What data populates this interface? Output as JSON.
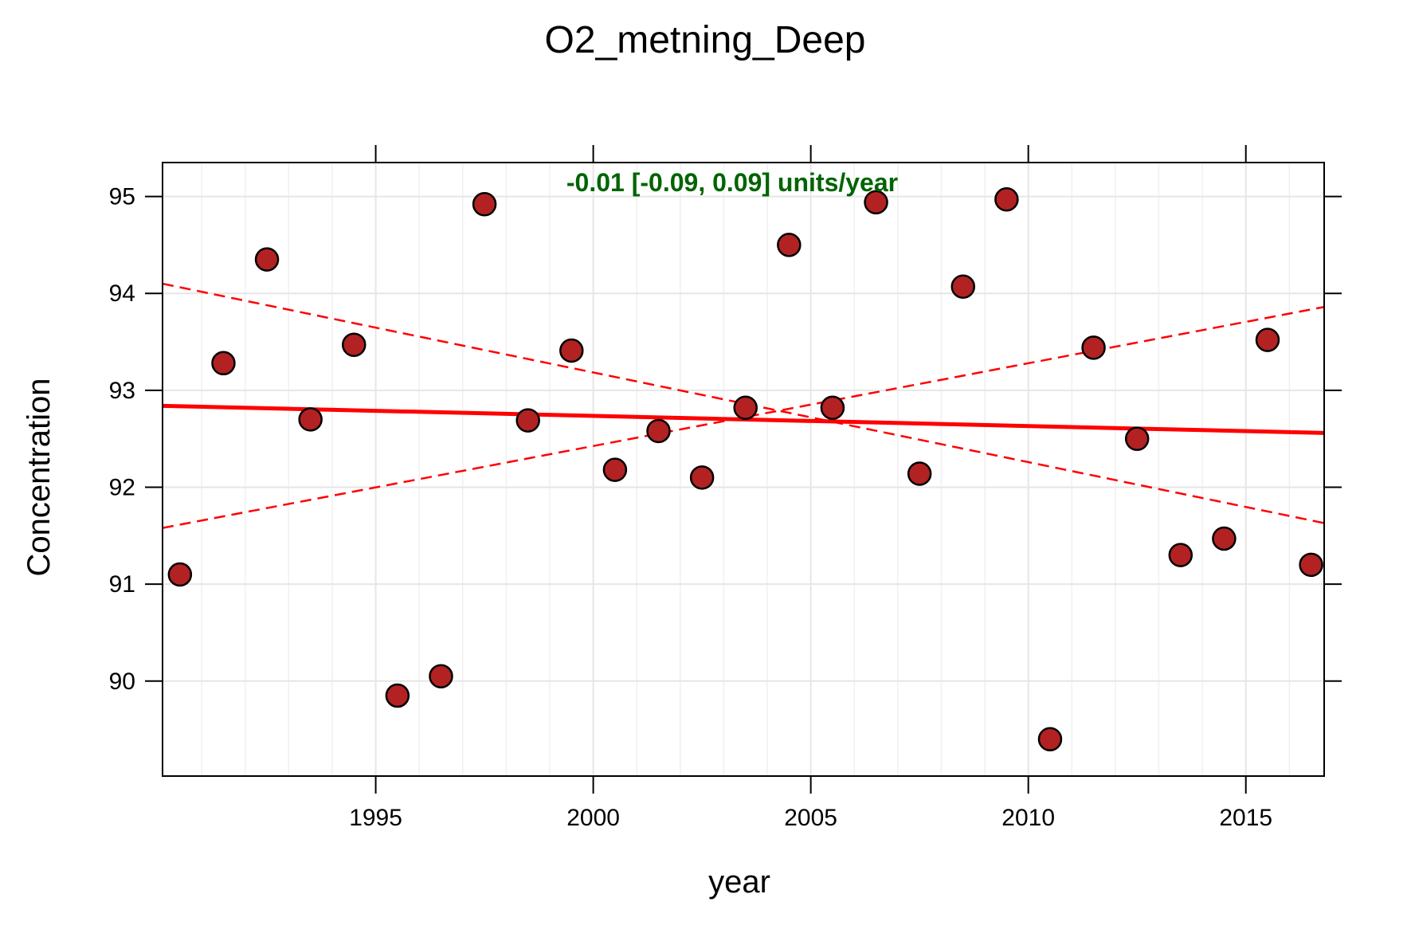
{
  "chart_data": {
    "type": "scatter",
    "title": "O2_metning_Deep",
    "xlabel": "year",
    "ylabel": "Concentration",
    "xlim": [
      1990.1,
      2016.8
    ],
    "ylim": [
      89.02,
      95.35
    ],
    "xticks": [
      1995,
      2000,
      2005,
      2010,
      2015
    ],
    "yticks": [
      90,
      91,
      92,
      93,
      94,
      95
    ],
    "grid": true,
    "annotation": {
      "text": "-0.01 [-0.09, 0.09] units/year",
      "color": "#006400",
      "position": "top-center"
    },
    "series": [
      {
        "kind": "points",
        "color": "#b22222",
        "edge_color": "#000000",
        "x": [
          1990.5,
          1991.5,
          1992.5,
          1993.5,
          1994.5,
          1995.5,
          1996.5,
          1997.5,
          1998.5,
          1999.5,
          2000.5,
          2001.5,
          2002.5,
          2003.5,
          2004.5,
          2005.5,
          2006.5,
          2007.5,
          2008.5,
          2009.5,
          2010.5,
          2011.5,
          2012.5,
          2013.5,
          2014.5,
          2015.5,
          2016.5
        ],
        "y": [
          91.1,
          93.28,
          94.35,
          92.7,
          93.47,
          89.85,
          90.05,
          94.92,
          92.69,
          93.41,
          92.18,
          92.58,
          92.1,
          92.82,
          94.5,
          92.82,
          94.94,
          92.14,
          94.07,
          94.97,
          89.4,
          93.44,
          92.5,
          91.3,
          91.47,
          93.52,
          91.2
        ]
      },
      {
        "kind": "trend",
        "color": "#ff0000",
        "style": "solid",
        "x": [
          1990.1,
          2016.8
        ],
        "y": [
          92.84,
          92.56
        ]
      },
      {
        "kind": "ci-upper",
        "color": "#ff0000",
        "style": "dashed",
        "x": [
          1990.1,
          2016.8
        ],
        "y": [
          94.1,
          91.63
        ]
      },
      {
        "kind": "ci-lower",
        "color": "#ff0000",
        "style": "dashed",
        "x": [
          1990.1,
          2016.8
        ],
        "y": [
          91.58,
          93.86
        ]
      }
    ]
  }
}
